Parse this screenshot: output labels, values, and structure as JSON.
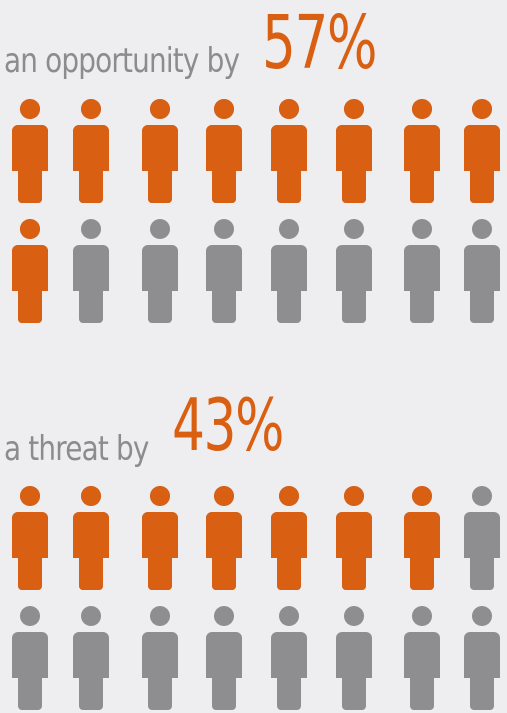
{
  "colors": {
    "orange": "#d95f12",
    "gray": "#8e8e90",
    "label": "#8c8c8c",
    "background": "#eeeef0"
  },
  "opportunity": {
    "label": "an opportunity by",
    "value": "57%",
    "fraction": 0.57,
    "total_icons": 16
  },
  "threat": {
    "label": "a threat by",
    "value": "43%",
    "fraction": 0.43,
    "total_icons": 16
  },
  "icon": "person-icon"
}
